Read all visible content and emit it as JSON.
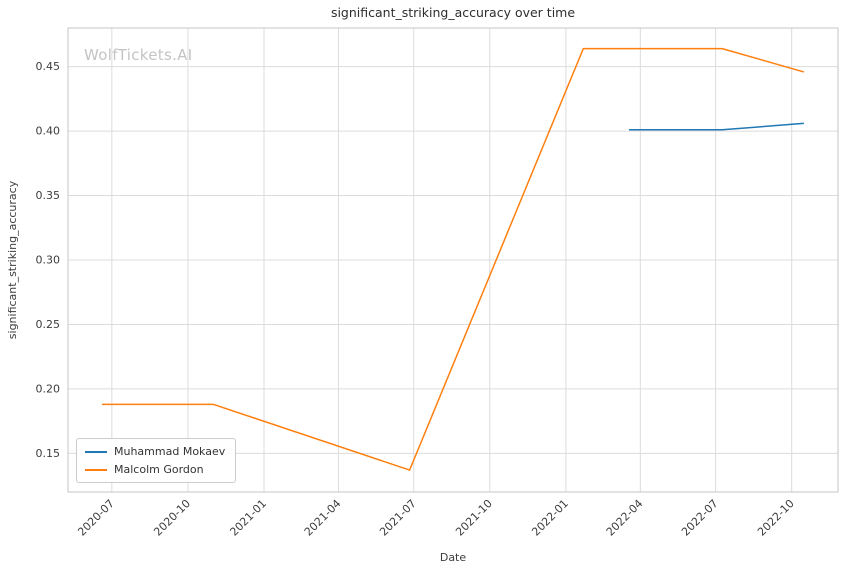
{
  "chart_data": {
    "type": "line",
    "title": "significant_striking_accuracy over time",
    "xlabel": "Date",
    "ylabel": "significant_striking_accuracy",
    "watermark": "WolfTickets.AI",
    "grid": true,
    "legend_position": "lower left",
    "x_ticks": [
      "2020-07",
      "2020-10",
      "2021-01",
      "2021-04",
      "2021-07",
      "2021-10",
      "2022-01",
      "2022-04",
      "2022-07",
      "2022-10"
    ],
    "y_ticks": [
      0.15,
      0.2,
      0.25,
      0.3,
      0.35,
      0.4,
      0.45
    ],
    "xlim": [
      "2020-05-09",
      "2022-11-26"
    ],
    "ylim": [
      0.12,
      0.48
    ],
    "series": [
      {
        "name": "Muhammad Mokaev",
        "color": "#1f77b4",
        "x": [
          "2022-03-19",
          "2022-07-09",
          "2022-10-15"
        ],
        "y": [
          0.401,
          0.401,
          0.406
        ]
      },
      {
        "name": "Malcolm Gordon",
        "color": "#ff7f0e",
        "x": [
          "2020-06-20",
          "2020-11-01",
          "2021-06-26",
          "2022-01-22",
          "2022-07-09",
          "2022-10-15"
        ],
        "y": [
          0.188,
          0.188,
          0.137,
          0.464,
          0.464,
          0.446
        ]
      }
    ]
  }
}
